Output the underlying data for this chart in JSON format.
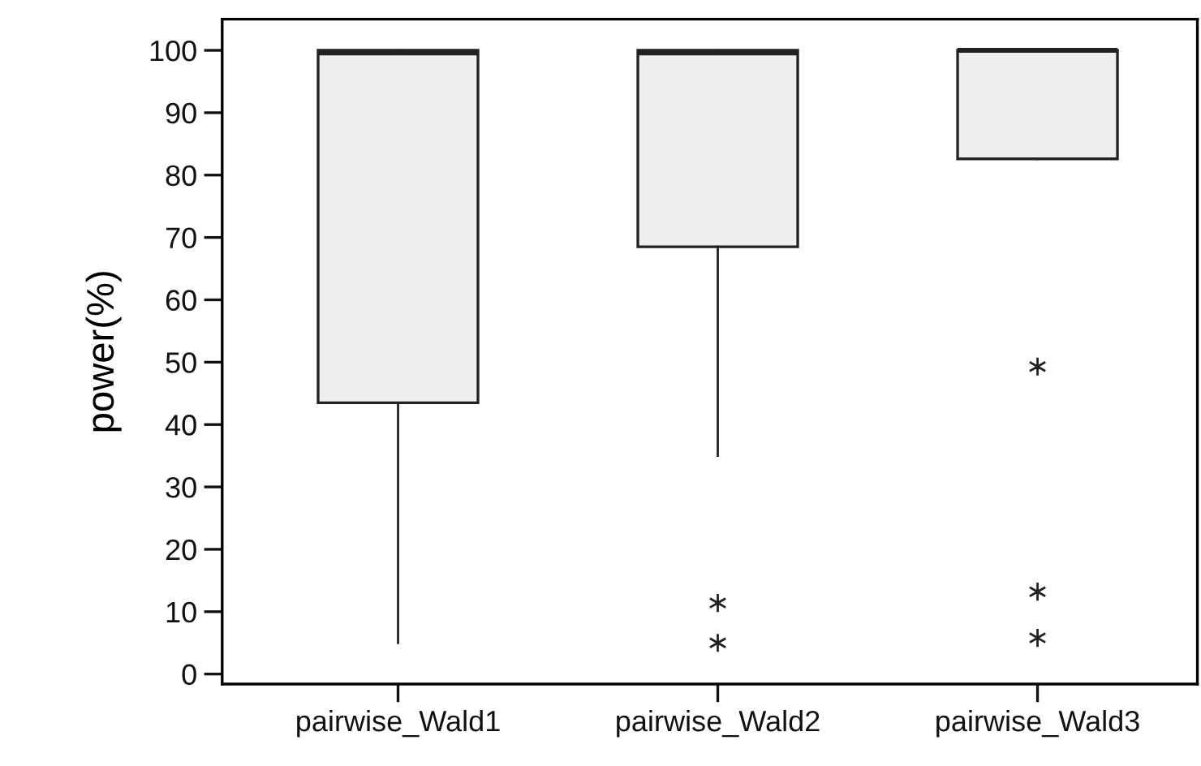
{
  "chart_data": {
    "type": "box",
    "ylabel": "power(%)",
    "categories": [
      "pairwise_Wald1",
      "pairwise_Wald2",
      "pairwise_Wald3"
    ],
    "boxes": [
      {
        "low": 5,
        "q1": 43.5,
        "median": 99.6,
        "q3": 100,
        "high": 100
      },
      {
        "low": 35,
        "q1": 68.5,
        "median": 99.6,
        "q3": 100,
        "high": 100,
        "outliers": [
          11.4,
          5
        ]
      },
      {
        "low": 82.6,
        "q1": 82.6,
        "median": 100,
        "q3": 100,
        "high": 100,
        "outliers": [
          49.3,
          13.2,
          5.8
        ]
      }
    ],
    "color": "#efefef",
    "marker": "star",
    "ylim": [
      -1.6,
      105
    ],
    "yticks": [
      0,
      10,
      20,
      30,
      40,
      50,
      60,
      70,
      80,
      90,
      100
    ],
    "grid": false
  }
}
